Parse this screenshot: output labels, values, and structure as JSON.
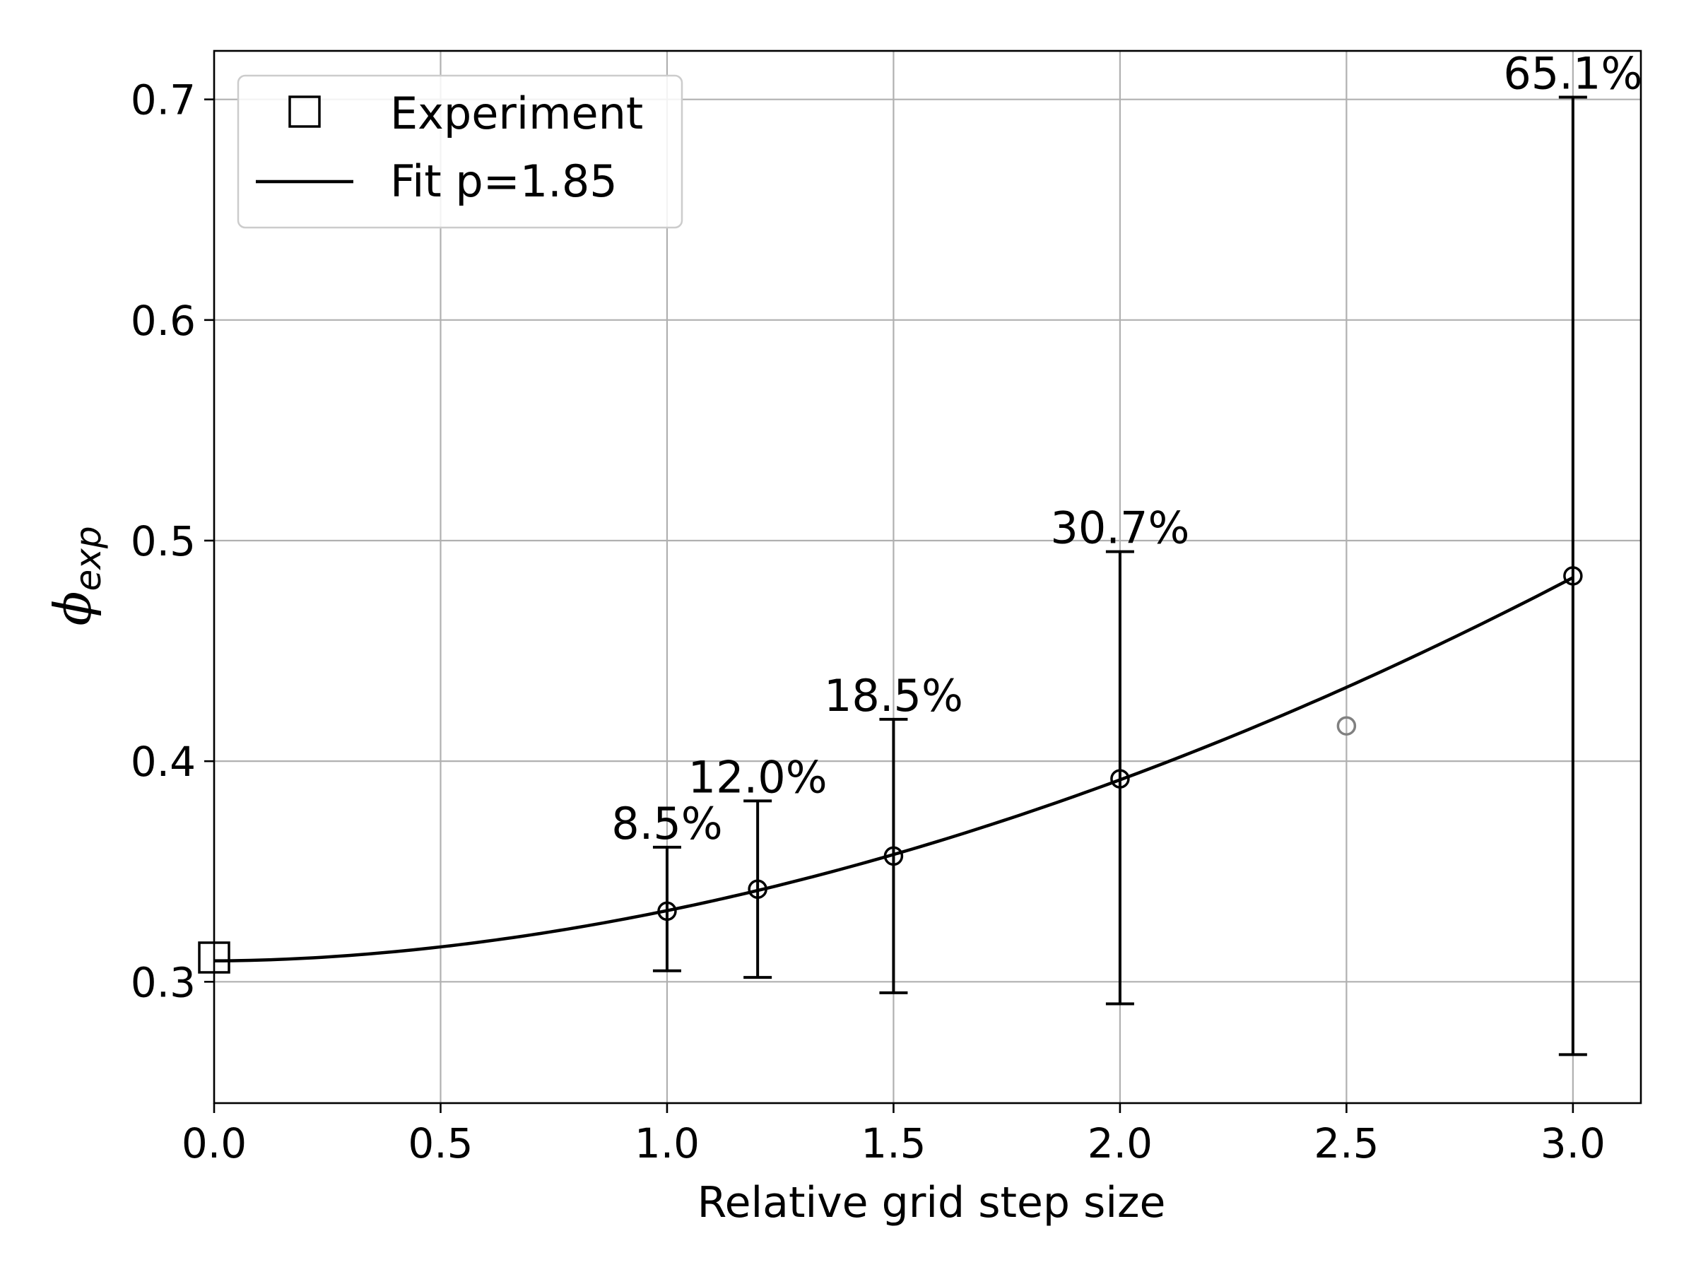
{
  "chart_data": {
    "type": "scatter",
    "xlabel": "Relative grid step size",
    "ylabel": {
      "symbol": "ϕ",
      "subscript": "exp"
    },
    "xlim": [
      0.0,
      3.15
    ],
    "ylim": [
      0.245,
      0.722
    ],
    "xticks": [
      "0.0",
      "0.5",
      "1.0",
      "1.5",
      "2.0",
      "2.5",
      "3.0"
    ],
    "xtick_values": [
      0.0,
      0.5,
      1.0,
      1.5,
      2.0,
      2.5,
      3.0
    ],
    "yticks": [
      "0.3",
      "0.4",
      "0.5",
      "0.6",
      "0.7"
    ],
    "ytick_values": [
      0.3,
      0.4,
      0.5,
      0.6,
      0.7
    ],
    "grid": true,
    "legend": {
      "position": "top-left",
      "entries": [
        {
          "label": "Experiment",
          "marker": "square"
        },
        {
          "label": "Fit p=1.85",
          "marker": "line"
        }
      ]
    },
    "experiment": {
      "x": 0.0,
      "y": 0.311
    },
    "fit": {
      "p": 1.85,
      "phi0": 0.3095,
      "coef": 0.02276,
      "x_range": [
        0.0,
        3.0
      ]
    },
    "points": [
      {
        "x": 1.0,
        "y": 0.332,
        "err_low": 0.305,
        "err_high": 0.361,
        "label": "8.5%"
      },
      {
        "x": 1.2,
        "y": 0.342,
        "err_low": 0.302,
        "err_high": 0.382,
        "label": "12.0%"
      },
      {
        "x": 1.5,
        "y": 0.357,
        "err_low": 0.295,
        "err_high": 0.419,
        "label": "18.5%"
      },
      {
        "x": 2.0,
        "y": 0.392,
        "err_low": 0.29,
        "err_high": 0.495,
        "label": "30.7%"
      },
      {
        "x": 3.0,
        "y": 0.484,
        "err_low": 0.267,
        "err_high": 0.701,
        "label": "65.1%"
      }
    ],
    "outlier": {
      "x": 2.5,
      "y": 0.416,
      "color": "#808080"
    },
    "colors": {
      "main": "#000000",
      "grid": "#b0b0b0",
      "outlier": "#808080",
      "legend_border": "#cccccc"
    }
  }
}
